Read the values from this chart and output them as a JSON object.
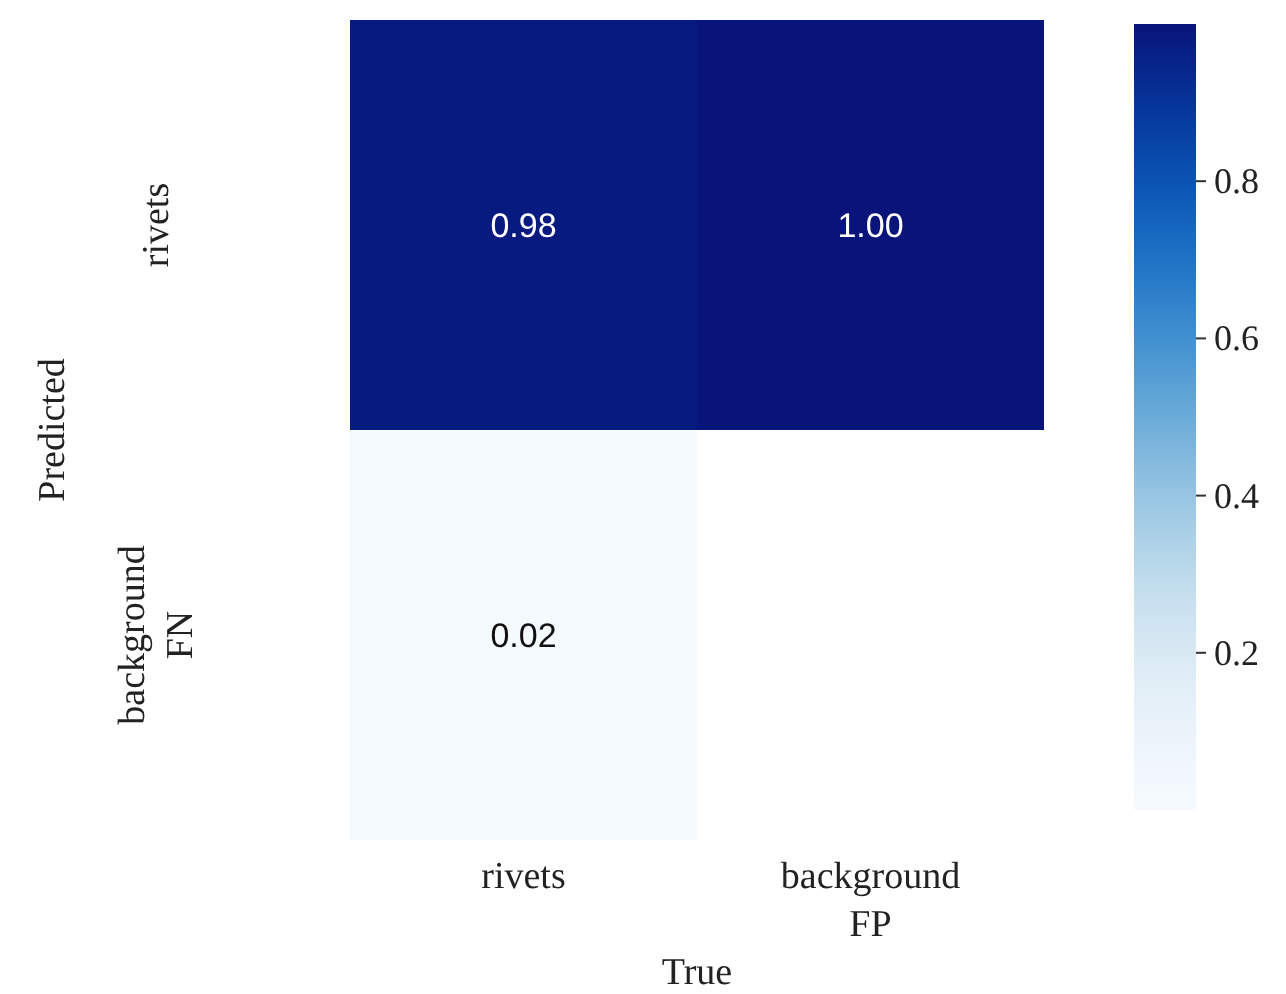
{
  "chart_data": {
    "type": "heatmap",
    "xlabel": "True",
    "ylabel": "Predicted",
    "categories": [
      "rivets",
      "background\nFP"
    ],
    "y_categories": [
      "rivets",
      "background\nFN"
    ],
    "cells": [
      [
        0.98,
        1.0
      ],
      [
        0.02,
        null
      ]
    ],
    "cell_labels": [
      [
        "0.98",
        "1.00"
      ],
      [
        "0.02",
        null
      ]
    ],
    "clim": [
      0.0,
      1.0
    ],
    "cticks": [
      {
        "value": 0.2,
        "label": "0.2"
      },
      {
        "value": 0.4,
        "label": "0.4"
      },
      {
        "value": 0.6,
        "label": "0.6"
      },
      {
        "value": 0.8,
        "label": "0.8"
      }
    ]
  }
}
